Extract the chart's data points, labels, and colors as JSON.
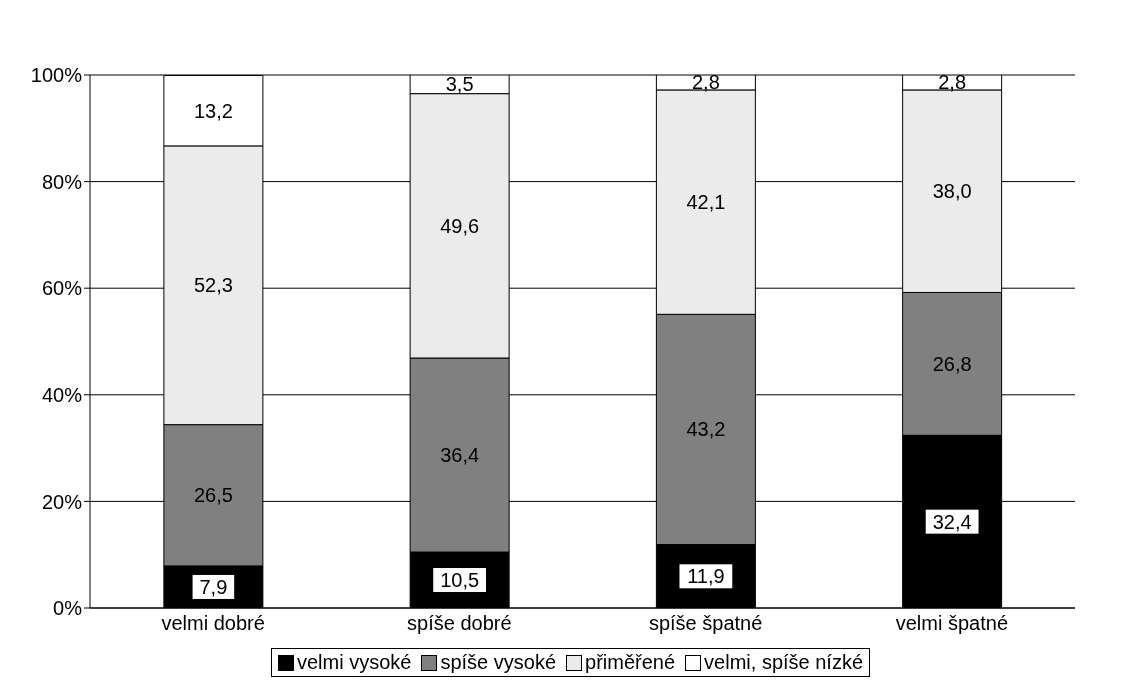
{
  "chart_data": {
    "type": "bar",
    "stacked": true,
    "categories": [
      "velmi dobré",
      "spíše dobré",
      "spíše špatné",
      "velmi špatné"
    ],
    "series": [
      {
        "name": "velmi vysoké",
        "color": "#000000",
        "values": [
          7.9,
          10.5,
          11.9,
          32.4
        ],
        "value_labels": [
          "7,9",
          "10,5",
          "11,9",
          "32,4"
        ]
      },
      {
        "name": "spíše vysoké",
        "color": "#808080",
        "values": [
          26.5,
          36.4,
          43.2,
          26.8
        ],
        "value_labels": [
          "26,5",
          "36,4",
          "43,2",
          "26,8"
        ]
      },
      {
        "name": "přiměřené",
        "color": "#ebebeb",
        "values": [
          52.3,
          49.6,
          42.1,
          38.0
        ],
        "value_labels": [
          "52,3",
          "49,6",
          "42,1",
          "38,0"
        ]
      },
      {
        "name": "velmi, spíše nízké",
        "color": "#ffffff",
        "values": [
          13.2,
          3.5,
          2.8,
          2.8
        ],
        "value_labels": [
          "13,2",
          "3,5",
          "2,8",
          "2,8"
        ]
      }
    ],
    "ylim": [
      0,
      100
    ],
    "yticks": [
      {
        "value": 0,
        "label": "0%"
      },
      {
        "value": 20,
        "label": "20%"
      },
      {
        "value": 40,
        "label": "40%"
      },
      {
        "value": 60,
        "label": "60%"
      },
      {
        "value": 80,
        "label": "80%"
      },
      {
        "value": 100,
        "label": "100%"
      }
    ],
    "grid": "y",
    "legend": "bottom"
  }
}
